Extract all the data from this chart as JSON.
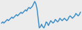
{
  "y": [
    5,
    5.5,
    5,
    5.5,
    6,
    6.5,
    6,
    6.5,
    7,
    7.5,
    7,
    7.5,
    8,
    8.5,
    8,
    8.5,
    9,
    9.5,
    9,
    9.5,
    10,
    10.5,
    10,
    11,
    11.5,
    11,
    11.5,
    12,
    13,
    14,
    13,
    11,
    7,
    3,
    3.5,
    4.5,
    3.5,
    3,
    4,
    5.5,
    5,
    4,
    5,
    6,
    5.5,
    5,
    5.5,
    6.5,
    6,
    5.5,
    6,
    7,
    6.5,
    6,
    6.5,
    7,
    6.5,
    6,
    6.5,
    7.5,
    8,
    7.5,
    7,
    7.5,
    8,
    9,
    8.5,
    8,
    8.5,
    9.5
  ],
  "line_color": "#3d8fc8",
  "background_color": "#ececec",
  "linewidth": 1.1
}
